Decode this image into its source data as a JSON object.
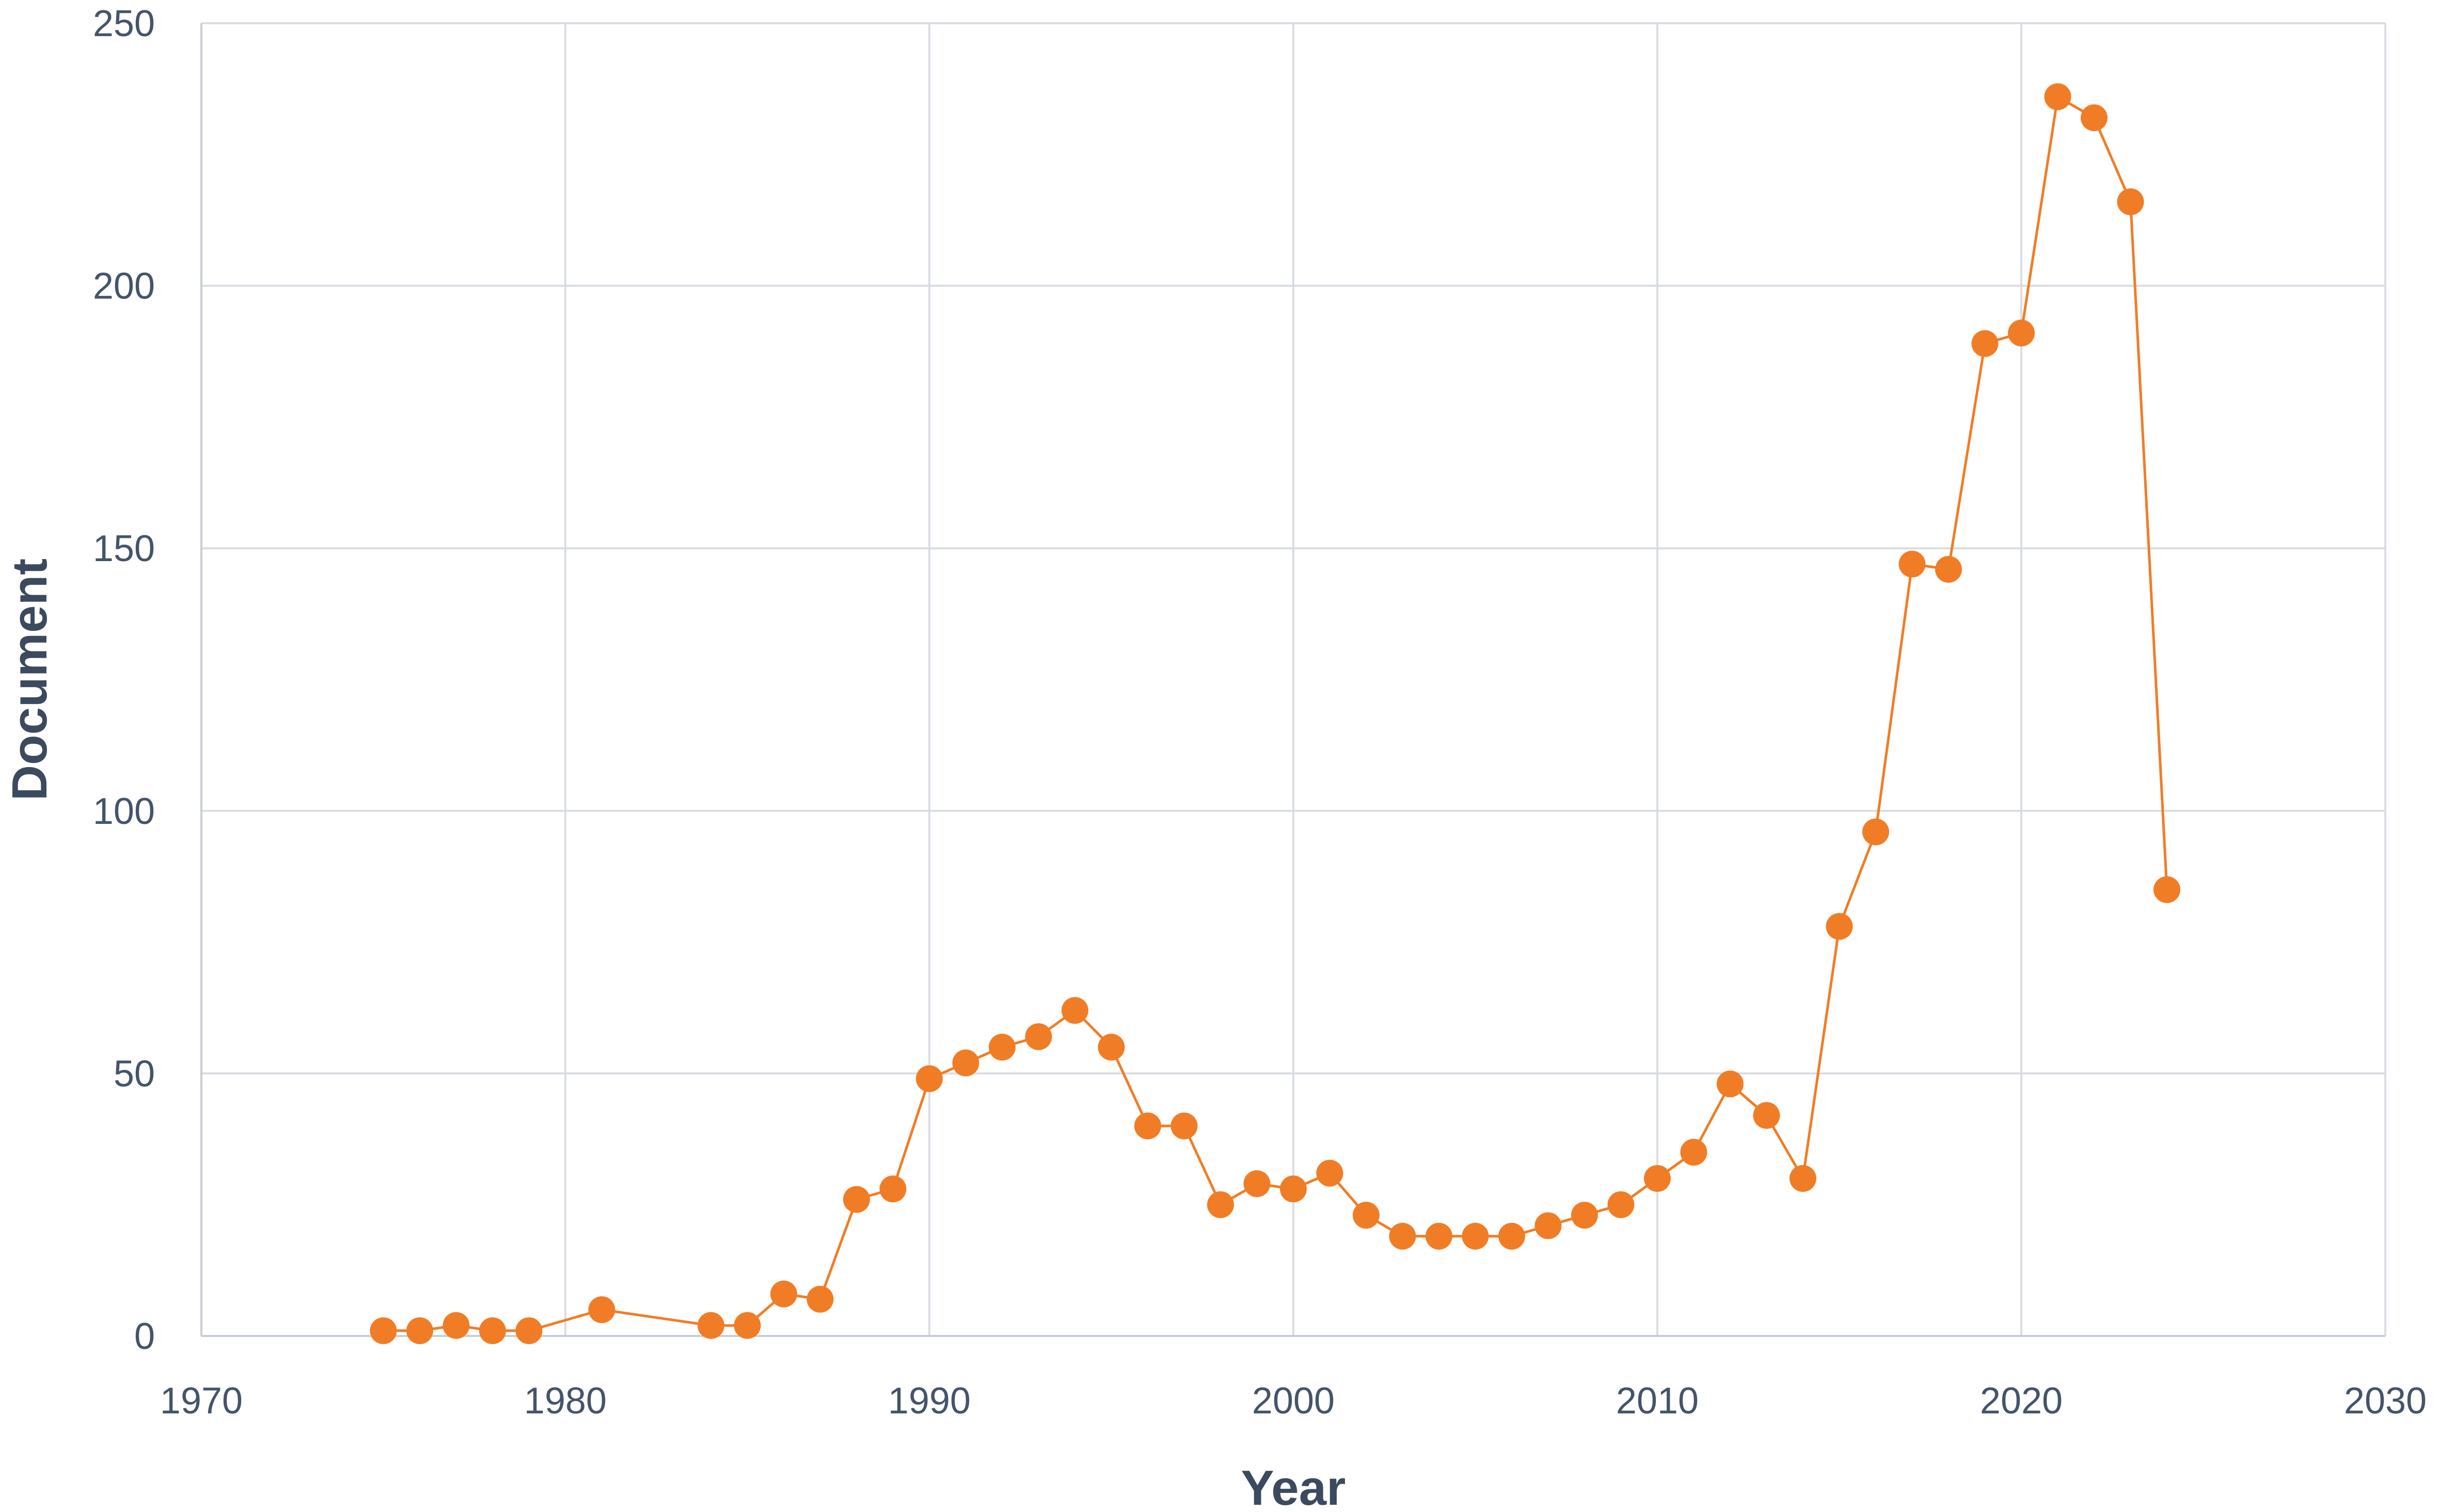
{
  "chart_data": {
    "type": "scatter",
    "xlabel": "Year",
    "ylabel": "Document",
    "xlim": [
      1970,
      2030
    ],
    "ylim": [
      0,
      250
    ],
    "xticks": [
      1970,
      1980,
      1990,
      2000,
      2010,
      2020,
      2030
    ],
    "yticks": [
      0,
      50,
      100,
      150,
      200,
      250
    ],
    "grid": true,
    "line": true,
    "marker": "circle",
    "color": "#f07d26",
    "series": [
      {
        "x": [
          1975,
          1976,
          1977,
          1978,
          1979,
          1981,
          1984,
          1985,
          1986,
          1987,
          1988,
          1989,
          1990,
          1991,
          1992,
          1993,
          1994,
          1995,
          1996,
          1997,
          1998,
          1999,
          2000,
          2001,
          2002,
          2003,
          2004,
          2005,
          2006,
          2007,
          2008,
          2009,
          2010,
          2011,
          2012,
          2013,
          2014,
          2015,
          2016,
          2017,
          2018,
          2019,
          2020,
          2021,
          2022,
          2023,
          2024
        ],
        "y": [
          1,
          1,
          2,
          1,
          1,
          5,
          2,
          2,
          8,
          7,
          26,
          28,
          49,
          52,
          55,
          57,
          62,
          55,
          40,
          40,
          25,
          29,
          28,
          31,
          23,
          19,
          19,
          19,
          19,
          21,
          23,
          25,
          30,
          35,
          48,
          42,
          30,
          78,
          96,
          147,
          146,
          189,
          191,
          236,
          232,
          216,
          85
        ]
      }
    ]
  }
}
